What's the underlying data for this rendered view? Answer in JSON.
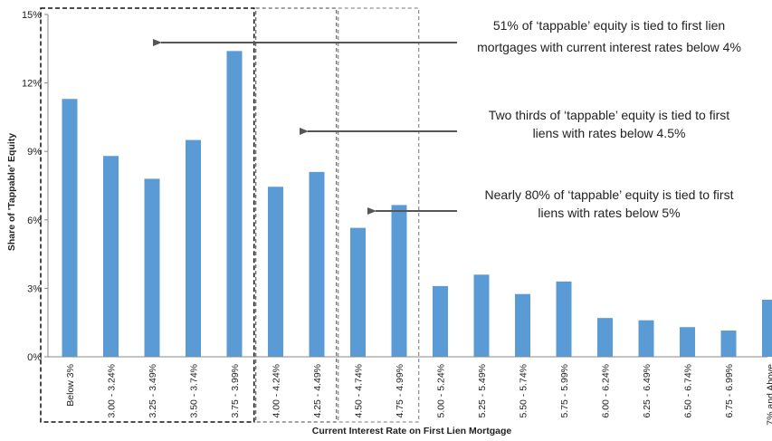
{
  "chart_data": {
    "type": "bar",
    "title": "",
    "xlabel": "Current Interest Rate on First Lien Mortgage",
    "ylabel": "Share of 'Tappable' Equity",
    "ylim": [
      0,
      15
    ],
    "yticks": [
      "0%",
      "3%",
      "6%",
      "9%",
      "12%",
      "15%"
    ],
    "ytick_values": [
      0,
      3,
      6,
      9,
      12,
      15
    ],
    "grid": false,
    "legend": "none",
    "categories": [
      "Below 3%",
      "3.00 - 3.24%",
      "3.25 - 3.49%",
      "3.50 - 3.74%",
      "3.75 - 3.99%",
      "4.00 - 4.24%",
      "4.25 - 4.49%",
      "4.50 - 4.74%",
      "4.75 - 4.99%",
      "5.00 - 5.24%",
      "5.25 - 5.49%",
      "5.50 - 5.74%",
      "5.75 - 5.99%",
      "6.00 - 6.24%",
      "6.25 - 6.49%",
      "6.50 - 6.74%",
      "6.75 - 6.99%",
      "7% and Above"
    ],
    "values": [
      11.3,
      8.8,
      7.8,
      9.5,
      13.4,
      7.45,
      8.1,
      5.65,
      6.65,
      3.1,
      3.6,
      2.75,
      3.3,
      1.7,
      1.6,
      1.3,
      1.15,
      2.5
    ],
    "bar_color": "#5B9BD5",
    "groupings": [
      {
        "style": "bold-dashed",
        "from": 0,
        "to": 4
      },
      {
        "style": "dashed",
        "from": 5,
        "to": 6
      },
      {
        "style": "light-dashed",
        "from": 7,
        "to": 8
      }
    ],
    "annotations": [
      {
        "lines": [
          "51% of ‘tappable’ equity is tied to first lien",
          "mortgages with current interest rates below 4%"
        ],
        "points_to": 3
      },
      {
        "lines": [
          "Two thirds of ‘tappable’ equity is tied to first",
          "liens with rates below 4.5%"
        ],
        "points_to": 5
      },
      {
        "lines": [
          "Nearly 80% of ‘tappable’ equity is tied to first",
          "liens with rates below 5%"
        ],
        "points_to": 7
      }
    ]
  }
}
